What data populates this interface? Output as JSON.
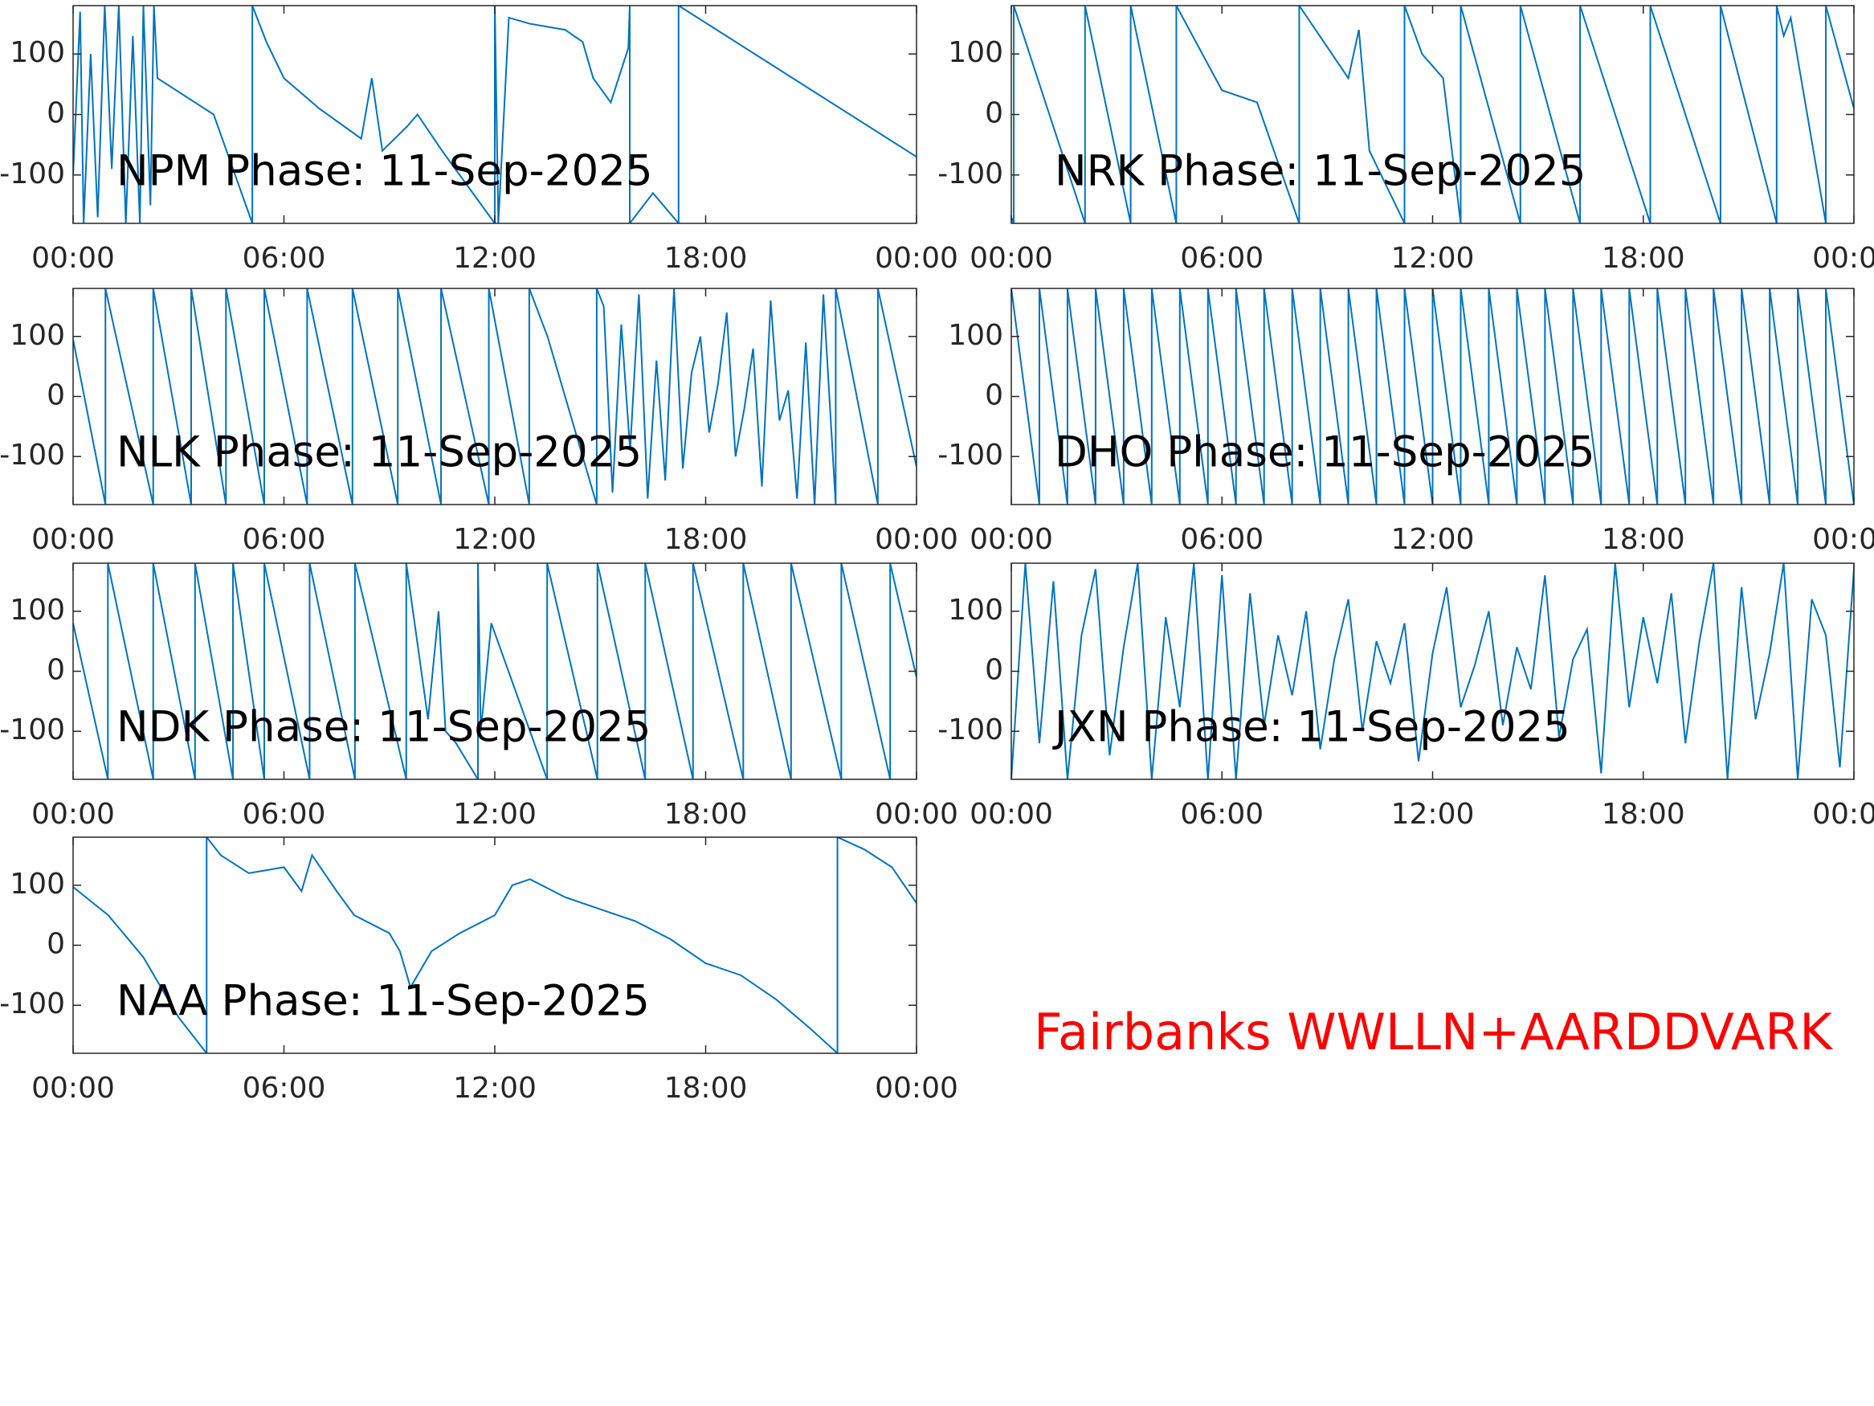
{
  "caption": "Fairbanks WWLLN+AARDDVARK",
  "chart_data": [
    {
      "type": "line",
      "title": "NPM Phase: 11-Sep-2025",
      "color": "#0072bd",
      "x": [
        0,
        0.2,
        0.3,
        0.5,
        0.7,
        0.9,
        1.1,
        1.3,
        1.5,
        1.7,
        1.9,
        2.0,
        2.2,
        2.3,
        2.4,
        4,
        5.1,
        5.1,
        5.5,
        6,
        7,
        8.2,
        8.5,
        8.8,
        9.5,
        9.8,
        10.5,
        11.5,
        12.0,
        12.0,
        12.1,
        12.4,
        13,
        14,
        14.5,
        14.8,
        15.3,
        15.8,
        15.84,
        15.84,
        16.5,
        17.23,
        17.23,
        24
      ],
      "values": [
        -100,
        170,
        -180,
        100,
        -170,
        180,
        -90,
        180,
        -180,
        130,
        -180,
        180,
        -150,
        180,
        60,
        0,
        -180,
        180,
        120,
        60,
        10,
        -40,
        60,
        -60,
        -20,
        0,
        -60,
        -140,
        -180,
        180,
        -180,
        160,
        150,
        140,
        120,
        60,
        20,
        110,
        180,
        -180,
        -130,
        -180,
        180,
        -70
      ],
      "xlim": [
        0,
        24
      ],
      "ylim": [
        -180,
        180
      ],
      "xticks": [
        {
          "value": 0,
          "label": "00:00"
        },
        {
          "value": 6,
          "label": "06:00"
        },
        {
          "value": 12,
          "label": "12:00"
        },
        {
          "value": 18,
          "label": "18:00"
        },
        {
          "value": 24,
          "label": "00:00"
        }
      ],
      "yticks": [
        -100,
        0,
        100
      ]
    },
    {
      "type": "line",
      "title": "NRK Phase: 11-Sep-2025",
      "color": "#0072bd",
      "x": [
        0,
        0.07,
        0.07,
        2.1,
        2.1,
        3.4,
        3.4,
        4.7,
        4.7,
        6,
        7,
        8.2,
        8.2,
        9.6,
        9.9,
        10.2,
        11.2,
        11.2,
        11.7,
        12.3,
        12.8,
        12.8,
        14.5,
        14.5,
        16.2,
        16.2,
        18.2,
        18.2,
        20.2,
        20.2,
        21.8,
        21.8,
        22.0,
        22.2,
        23.2,
        23.2,
        24
      ],
      "values": [
        -170,
        -180,
        180,
        -180,
        180,
        -180,
        180,
        -180,
        180,
        40,
        20,
        -180,
        180,
        60,
        140,
        -60,
        -180,
        180,
        100,
        60,
        -180,
        180,
        -180,
        180,
        -180,
        180,
        -180,
        180,
        -180,
        180,
        -180,
        180,
        130,
        160,
        -180,
        180,
        10
      ],
      "xlim": [
        0,
        24
      ],
      "ylim": [
        -180,
        180
      ],
      "xticks": [
        {
          "value": 0,
          "label": "00:00"
        },
        {
          "value": 6,
          "label": "06:00"
        },
        {
          "value": 12,
          "label": "12:00"
        },
        {
          "value": 18,
          "label": "18:00"
        },
        {
          "value": 24,
          "label": "00:00"
        }
      ],
      "yticks": [
        -100,
        0,
        100
      ]
    },
    {
      "type": "line",
      "title": "NLK Phase: 11-Sep-2025",
      "color": "#0072bd",
      "x": [
        0,
        0.92,
        0.92,
        2.28,
        2.28,
        3.36,
        3.36,
        4.35,
        4.35,
        5.44,
        5.44,
        6.66,
        6.66,
        7.95,
        7.95,
        9.24,
        9.24,
        10.47,
        10.47,
        11.83,
        11.83,
        12.98,
        12.98,
        13.5,
        14.9,
        14.9,
        15.1,
        15.35,
        15.6,
        15.85,
        16.1,
        16.35,
        16.6,
        16.85,
        17.1,
        17.35,
        17.6,
        17.85,
        18.1,
        18.35,
        18.6,
        18.85,
        19.1,
        19.35,
        19.6,
        19.85,
        20.1,
        20.35,
        20.6,
        20.85,
        21.1,
        21.35,
        21.7,
        21.7,
        22.9,
        22.9,
        24
      ],
      "values": [
        95,
        -180,
        180,
        -180,
        180,
        -180,
        180,
        -180,
        180,
        -180,
        180,
        -180,
        180,
        -180,
        180,
        -180,
        180,
        -180,
        180,
        -180,
        180,
        -180,
        180,
        100,
        -180,
        180,
        150,
        -160,
        120,
        -90,
        170,
        -170,
        60,
        -140,
        180,
        -120,
        40,
        100,
        -60,
        20,
        140,
        -100,
        -20,
        80,
        -150,
        160,
        -40,
        10,
        -170,
        90,
        -180,
        170,
        -180,
        180,
        -180,
        180,
        -117
      ],
      "xlim": [
        0,
        24
      ],
      "ylim": [
        -180,
        180
      ],
      "xticks": [
        {
          "value": 0,
          "label": "00:00"
        },
        {
          "value": 6,
          "label": "06:00"
        },
        {
          "value": 12,
          "label": "12:00"
        },
        {
          "value": 18,
          "label": "18:00"
        },
        {
          "value": 24,
          "label": "00:00"
        }
      ],
      "yticks": [
        -100,
        0,
        100
      ]
    },
    {
      "type": "line",
      "title": "DHO Phase: 11-Sep-2025",
      "color": "#0072bd",
      "x": [
        0,
        0.8,
        0.8,
        1.6,
        1.6,
        2.4,
        2.4,
        3.2,
        3.2,
        4,
        4,
        4.8,
        4.8,
        5.6,
        5.6,
        6.4,
        6.4,
        7.2,
        7.2,
        8,
        8,
        8.8,
        8.8,
        9.6,
        9.6,
        10.4,
        10.4,
        11.2,
        11.2,
        12,
        12,
        12.8,
        12.8,
        13.6,
        13.6,
        14.4,
        14.4,
        15.2,
        15.2,
        16,
        16,
        16.8,
        16.8,
        17.6,
        17.6,
        18.4,
        18.4,
        19.2,
        19.2,
        20,
        20,
        20.8,
        20.8,
        21.6,
        21.6,
        22.4,
        22.4,
        23.2,
        23.2,
        24
      ],
      "values": [
        180,
        -180,
        180,
        -180,
        180,
        -180,
        180,
        -180,
        180,
        -180,
        180,
        -180,
        180,
        -180,
        180,
        -180,
        180,
        -180,
        180,
        -180,
        180,
        -180,
        180,
        -180,
        180,
        -180,
        180,
        -180,
        180,
        -180,
        180,
        -180,
        180,
        -180,
        180,
        -180,
        180,
        -180,
        180,
        -180,
        180,
        -180,
        180,
        -180,
        180,
        -180,
        180,
        -180,
        180,
        -180,
        180,
        -180,
        180,
        -180,
        180,
        -180,
        180,
        -180,
        180,
        -180
      ],
      "xlim": [
        0,
        24
      ],
      "ylim": [
        -180,
        180
      ],
      "xticks": [
        {
          "value": 0,
          "label": "00:00"
        },
        {
          "value": 6,
          "label": "06:00"
        },
        {
          "value": 12,
          "label": "12:00"
        },
        {
          "value": 18,
          "label": "18:00"
        },
        {
          "value": 24,
          "label": "00:00"
        }
      ],
      "yticks": [
        -100,
        0,
        100
      ]
    },
    {
      "type": "line",
      "title": "NDK Phase: 11-Sep-2025",
      "color": "#0072bd",
      "x": [
        0,
        0.99,
        0.99,
        2.28,
        2.28,
        3.47,
        3.47,
        4.55,
        4.55,
        5.44,
        5.44,
        6.73,
        6.73,
        8.02,
        8.02,
        9.48,
        9.48,
        10.1,
        10.4,
        10.6,
        10.9,
        11.52,
        11.52,
        11.6,
        11.9,
        13.49,
        13.49,
        14.92,
        14.92,
        16.28,
        16.28,
        17.64,
        17.64,
        19.07,
        19.07,
        20.43,
        20.43,
        21.86,
        21.86,
        23.25,
        23.25,
        24
      ],
      "values": [
        80,
        -180,
        180,
        -180,
        180,
        -180,
        180,
        -180,
        180,
        -180,
        180,
        -180,
        180,
        -180,
        180,
        -180,
        180,
        -80,
        100,
        -100,
        -120,
        -180,
        180,
        -100,
        80,
        -180,
        180,
        -180,
        180,
        -180,
        180,
        -180,
        180,
        -180,
        180,
        -180,
        180,
        -180,
        180,
        -180,
        180,
        -10
      ],
      "xlim": [
        0,
        24
      ],
      "ylim": [
        -180,
        180
      ],
      "xticks": [
        {
          "value": 0,
          "label": "00:00"
        },
        {
          "value": 6,
          "label": "06:00"
        },
        {
          "value": 12,
          "label": "12:00"
        },
        {
          "value": 18,
          "label": "18:00"
        },
        {
          "value": 24,
          "label": "00:00"
        }
      ],
      "yticks": [
        -100,
        0,
        100
      ]
    },
    {
      "type": "line",
      "title": "JXN Phase: 11-Sep-2025",
      "color": "#0072bd",
      "x": [
        0,
        0.4,
        0.8,
        1.2,
        1.6,
        2.0,
        2.4,
        2.8,
        3.2,
        3.6,
        4.0,
        4.4,
        4.8,
        5.2,
        5.6,
        6.0,
        6.4,
        6.8,
        7.2,
        7.6,
        8.0,
        8.4,
        8.8,
        9.2,
        9.6,
        10.0,
        10.4,
        10.8,
        11.2,
        11.6,
        12.0,
        12.4,
        12.8,
        13.2,
        13.6,
        14.0,
        14.4,
        14.8,
        15.2,
        15.6,
        16.0,
        16.4,
        16.8,
        17.2,
        17.6,
        18.0,
        18.4,
        18.8,
        19.2,
        19.6,
        20.0,
        20.4,
        20.8,
        21.2,
        21.6,
        22.0,
        22.4,
        22.8,
        23.2,
        23.6,
        24
      ],
      "values": [
        -180,
        180,
        -120,
        150,
        -180,
        60,
        170,
        -140,
        40,
        180,
        -180,
        90,
        -60,
        180,
        -180,
        160,
        -180,
        130,
        -90,
        60,
        -40,
        100,
        -130,
        20,
        120,
        -100,
        50,
        -20,
        80,
        -150,
        30,
        140,
        -60,
        10,
        100,
        -90,
        40,
        -30,
        160,
        -110,
        20,
        70,
        -170,
        180,
        -60,
        90,
        -20,
        130,
        -120,
        50,
        180,
        -180,
        140,
        -80,
        30,
        180,
        -180,
        120,
        60,
        -160,
        170
      ],
      "xlim": [
        0,
        24
      ],
      "ylim": [
        -180,
        180
      ],
      "xticks": [
        {
          "value": 0,
          "label": "00:00"
        },
        {
          "value": 6,
          "label": "06:00"
        },
        {
          "value": 12,
          "label": "12:00"
        },
        {
          "value": 18,
          "label": "18:00"
        },
        {
          "value": 24,
          "label": "00:00"
        }
      ],
      "yticks": [
        -100,
        0,
        100
      ]
    },
    {
      "type": "line",
      "title": "NAA Phase: 11-Sep-2025",
      "color": "#0072bd",
      "x": [
        0,
        1,
        2,
        3,
        3.8,
        3.8,
        4.2,
        5,
        6,
        6.5,
        6.8,
        7.5,
        8,
        9,
        9.3,
        9.6,
        10.2,
        11,
        12,
        12.5,
        13,
        13.5,
        14,
        15,
        16,
        17,
        18,
        19,
        20,
        21,
        21.75,
        21.75,
        22.5,
        23.3,
        24
      ],
      "values": [
        97,
        50,
        -20,
        -120,
        -180,
        180,
        150,
        120,
        130,
        90,
        150,
        90,
        50,
        20,
        -10,
        -70,
        -10,
        20,
        50,
        100,
        110,
        95,
        80,
        60,
        40,
        10,
        -30,
        -50,
        -90,
        -140,
        -180,
        180,
        160,
        130,
        70
      ],
      "xlim": [
        0,
        24
      ],
      "ylim": [
        -180,
        180
      ],
      "xticks": [
        {
          "value": 0,
          "label": "00:00"
        },
        {
          "value": 6,
          "label": "06:00"
        },
        {
          "value": 12,
          "label": "12:00"
        },
        {
          "value": 18,
          "label": "18:00"
        },
        {
          "value": 24,
          "label": "00:00"
        }
      ],
      "yticks": [
        -100,
        0,
        100
      ]
    }
  ]
}
